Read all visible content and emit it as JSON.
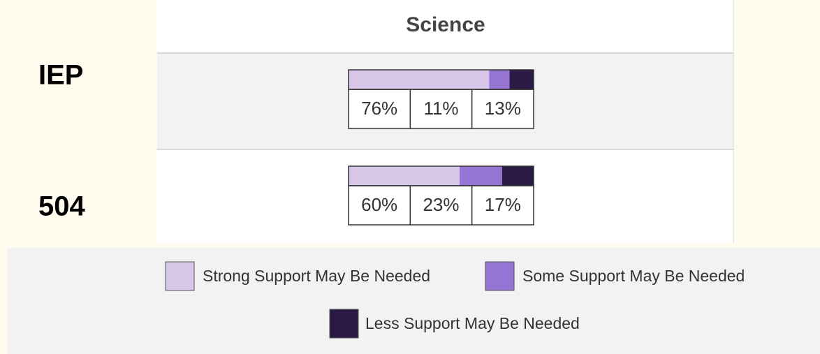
{
  "chart_data": {
    "type": "stacked-bar",
    "title": "Science",
    "categories": [
      "IEP",
      "504"
    ],
    "series": [
      {
        "name": "Strong Support May Be Needed",
        "color": "#d8c6e9",
        "values": [
          76,
          60
        ],
        "value_labels": [
          "76%",
          "60%"
        ]
      },
      {
        "name": "Some Support May Be Needed",
        "color": "#9674d4",
        "values": [
          11,
          23
        ],
        "value_labels": [
          "11%",
          "23%"
        ]
      },
      {
        "name": "Less Support May Be Needed",
        "color": "#2b1a45",
        "values": [
          13,
          17
        ],
        "value_labels": [
          "13%",
          "17%"
        ]
      }
    ],
    "legend": "bottom"
  }
}
